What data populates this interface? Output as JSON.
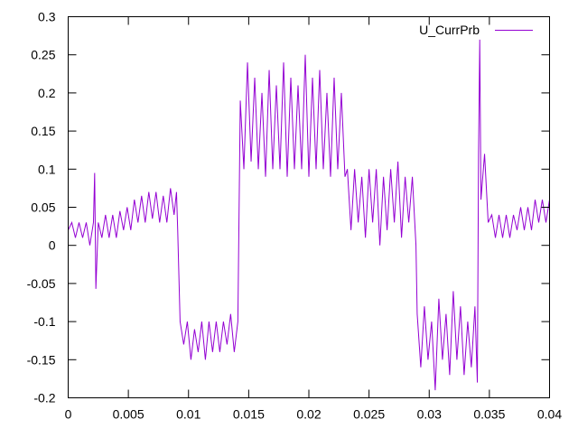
{
  "chart_data": {
    "type": "line",
    "title": "",
    "xlabel": "",
    "ylabel": "",
    "xlim": [
      0,
      0.04
    ],
    "ylim": [
      -0.2,
      0.3
    ],
    "xticks": [
      "0",
      "0.005",
      "0.01",
      "0.015",
      "0.02",
      "0.025",
      "0.03",
      "0.035",
      "0.04"
    ],
    "xtick_values": [
      0,
      0.005,
      0.01,
      0.015,
      0.02,
      0.025,
      0.03,
      0.035,
      0.04
    ],
    "yticks": [
      "0.3",
      "0.25",
      "0.2",
      "0.15",
      "0.1",
      "0.05",
      "0",
      "-0.05",
      "-0.1",
      "-0.15",
      "-0.2"
    ],
    "ytick_values": [
      0.3,
      0.25,
      0.2,
      0.15,
      0.1,
      0.05,
      0,
      -0.05,
      -0.1,
      -0.15,
      -0.2
    ],
    "grid": false,
    "legend_position": "top-right",
    "series": [
      {
        "name": "U_CurrPrb",
        "color": "#9400d3",
        "points": [
          [
            0,
            0.02
          ],
          [
            0.0003,
            0.03
          ],
          [
            0.0006,
            0.01
          ],
          [
            0.0009,
            0.03
          ],
          [
            0.0012,
            0.01
          ],
          [
            0.0015,
            0.03
          ],
          [
            0.0018,
            0.0
          ],
          [
            0.0021,
            0.03
          ],
          [
            0.0022,
            0.095
          ],
          [
            0.0023,
            -0.057
          ],
          [
            0.0025,
            0.03
          ],
          [
            0.0028,
            0.01
          ],
          [
            0.0031,
            0.04
          ],
          [
            0.0034,
            0.01
          ],
          [
            0.0037,
            0.04
          ],
          [
            0.004,
            0.01
          ],
          [
            0.0043,
            0.045
          ],
          [
            0.0046,
            0.02
          ],
          [
            0.0049,
            0.05
          ],
          [
            0.0052,
            0.02
          ],
          [
            0.0055,
            0.06
          ],
          [
            0.0058,
            0.03
          ],
          [
            0.0061,
            0.065
          ],
          [
            0.0064,
            0.03
          ],
          [
            0.0067,
            0.07
          ],
          [
            0.007,
            0.035
          ],
          [
            0.0073,
            0.07
          ],
          [
            0.0076,
            0.03
          ],
          [
            0.0079,
            0.065
          ],
          [
            0.0082,
            0.03
          ],
          [
            0.0085,
            0.075
          ],
          [
            0.0088,
            0.04
          ],
          [
            0.009,
            0.07
          ],
          [
            0.0091,
            0.02
          ],
          [
            0.0093,
            -0.1
          ],
          [
            0.0096,
            -0.13
          ],
          [
            0.0099,
            -0.1
          ],
          [
            0.0102,
            -0.15
          ],
          [
            0.0105,
            -0.11
          ],
          [
            0.0108,
            -0.14
          ],
          [
            0.0111,
            -0.1
          ],
          [
            0.0114,
            -0.15
          ],
          [
            0.0117,
            -0.1
          ],
          [
            0.012,
            -0.14
          ],
          [
            0.0123,
            -0.1
          ],
          [
            0.0126,
            -0.14
          ],
          [
            0.0129,
            -0.1
          ],
          [
            0.0132,
            -0.13
          ],
          [
            0.0135,
            -0.09
          ],
          [
            0.0138,
            -0.14
          ],
          [
            0.0141,
            -0.1
          ],
          [
            0.0143,
            0.19
          ],
          [
            0.0146,
            0.1
          ],
          [
            0.0149,
            0.24
          ],
          [
            0.0152,
            0.11
          ],
          [
            0.0155,
            0.22
          ],
          [
            0.0158,
            0.1
          ],
          [
            0.0161,
            0.2
          ],
          [
            0.0164,
            0.09
          ],
          [
            0.0167,
            0.23
          ],
          [
            0.017,
            0.1
          ],
          [
            0.0173,
            0.21
          ],
          [
            0.0176,
            0.1
          ],
          [
            0.0179,
            0.24
          ],
          [
            0.0182,
            0.09
          ],
          [
            0.0185,
            0.22
          ],
          [
            0.0188,
            0.1
          ],
          [
            0.0191,
            0.21
          ],
          [
            0.0194,
            0.1
          ],
          [
            0.0197,
            0.25
          ],
          [
            0.02,
            0.09
          ],
          [
            0.0203,
            0.22
          ],
          [
            0.0206,
            0.1
          ],
          [
            0.0209,
            0.23
          ],
          [
            0.0212,
            0.1
          ],
          [
            0.0215,
            0.2
          ],
          [
            0.0218,
            0.09
          ],
          [
            0.0221,
            0.22
          ],
          [
            0.0224,
            0.1
          ],
          [
            0.0227,
            0.2
          ],
          [
            0.023,
            0.09
          ],
          [
            0.0232,
            0.1
          ],
          [
            0.0235,
            0.02
          ],
          [
            0.0238,
            0.1
          ],
          [
            0.0241,
            0.03
          ],
          [
            0.0244,
            0.09
          ],
          [
            0.0247,
            0.01
          ],
          [
            0.025,
            0.1
          ],
          [
            0.0253,
            0.03
          ],
          [
            0.0256,
            0.1
          ],
          [
            0.0259,
            0.0
          ],
          [
            0.0262,
            0.09
          ],
          [
            0.0265,
            0.02
          ],
          [
            0.0268,
            0.1
          ],
          [
            0.0271,
            0.03
          ],
          [
            0.0274,
            0.11
          ],
          [
            0.0277,
            0.01
          ],
          [
            0.028,
            0.09
          ],
          [
            0.0283,
            0.03
          ],
          [
            0.0286,
            0.09
          ],
          [
            0.0289,
            0.0
          ],
          [
            0.029,
            -0.09
          ],
          [
            0.0293,
            -0.16
          ],
          [
            0.0296,
            -0.08
          ],
          [
            0.0299,
            -0.15
          ],
          [
            0.0302,
            -0.1
          ],
          [
            0.0305,
            -0.19
          ],
          [
            0.0308,
            -0.07
          ],
          [
            0.0311,
            -0.15
          ],
          [
            0.0314,
            -0.09
          ],
          [
            0.0317,
            -0.17
          ],
          [
            0.032,
            -0.06
          ],
          [
            0.0323,
            -0.15
          ],
          [
            0.0326,
            -0.08
          ],
          [
            0.0329,
            -0.17
          ],
          [
            0.0332,
            -0.1
          ],
          [
            0.0335,
            -0.16
          ],
          [
            0.0338,
            -0.08
          ],
          [
            0.034,
            -0.18
          ],
          [
            0.0341,
            0.12
          ],
          [
            0.0342,
            0.27
          ],
          [
            0.0343,
            0.06
          ],
          [
            0.0346,
            0.12
          ],
          [
            0.0349,
            0.03
          ],
          [
            0.0352,
            0.04
          ],
          [
            0.0355,
            0.01
          ],
          [
            0.0358,
            0.04
          ],
          [
            0.0361,
            0.01
          ],
          [
            0.0364,
            0.04
          ],
          [
            0.0367,
            0.01
          ],
          [
            0.037,
            0.04
          ],
          [
            0.0373,
            0.02
          ],
          [
            0.0376,
            0.05
          ],
          [
            0.0379,
            0.02
          ],
          [
            0.0382,
            0.05
          ],
          [
            0.0385,
            0.02
          ],
          [
            0.0388,
            0.06
          ],
          [
            0.0391,
            0.03
          ],
          [
            0.0394,
            0.06
          ],
          [
            0.0397,
            0.03
          ],
          [
            0.04,
            0.06
          ]
        ]
      }
    ]
  }
}
